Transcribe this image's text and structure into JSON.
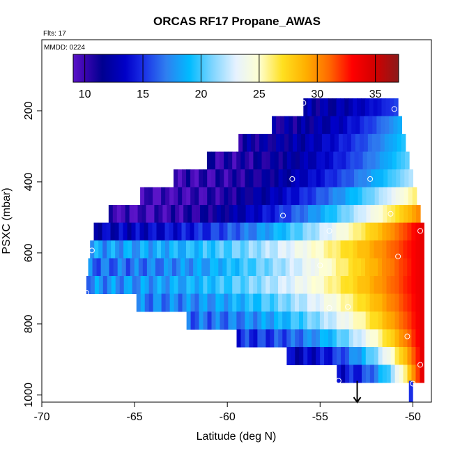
{
  "chart_data": {
    "type": "heatmap",
    "title": "ORCAS RF17 Propane_AWAS",
    "flights_label": "Flts: 17",
    "mmdd_label": "MMDD: 0224",
    "xlabel": "Latitude (deg N)",
    "ylabel": "PSXC (mbar)",
    "xlim": [
      -70,
      -49
    ],
    "ylim": [
      1020,
      0
    ],
    "x_ticks": [
      -70,
      -65,
      -60,
      -55,
      -50
    ],
    "x_tick_labels": [
      "-70",
      "-65",
      "-60",
      "-55",
      "-50"
    ],
    "y_ticks": [
      200,
      400,
      600,
      800,
      1000
    ],
    "y_tick_labels": [
      "200",
      "400",
      "600",
      "800",
      "1000"
    ],
    "colorbar": {
      "min": 9,
      "max": 37,
      "ticks": [
        10,
        15,
        20,
        25,
        30,
        35
      ],
      "tick_labels": [
        "10",
        "15",
        "20",
        "25",
        "30",
        "35"
      ],
      "stops": [
        {
          "v": 9,
          "c": "#5a14c8"
        },
        {
          "v": 10,
          "c": "#3a05b0"
        },
        {
          "v": 11.5,
          "c": "#000090"
        },
        {
          "v": 13.5,
          "c": "#0000c8"
        },
        {
          "v": 15,
          "c": "#1a2ee6"
        },
        {
          "v": 17,
          "c": "#2f7ff0"
        },
        {
          "v": 19,
          "c": "#00bbff"
        },
        {
          "v": 21,
          "c": "#7fd5ff"
        },
        {
          "v": 23,
          "c": "#e6f2ff"
        },
        {
          "v": 25,
          "c": "#ffffd0"
        },
        {
          "v": 27,
          "c": "#ffe020"
        },
        {
          "v": 29,
          "c": "#ffb000"
        },
        {
          "v": 31,
          "c": "#ff6a00"
        },
        {
          "v": 33,
          "c": "#ff0000"
        },
        {
          "v": 35,
          "c": "#d00000"
        },
        {
          "v": 37,
          "c": "#8b1a1a"
        }
      ]
    },
    "rows": [
      {
        "p": 190,
        "x0": -55.9,
        "x1": -50.8,
        "v0": 12.0,
        "v1": 15.5
      },
      {
        "p": 240,
        "x0": -57.6,
        "x1": -50.6,
        "v0": 11.5,
        "v1": 18.5
      },
      {
        "p": 290,
        "x0": -59.4,
        "x1": -50.4,
        "v0": 11.5,
        "v1": 19.5
      },
      {
        "p": 340,
        "x0": -61.1,
        "x1": -50.2,
        "v0": 10.5,
        "v1": 20.5
      },
      {
        "p": 390,
        "x0": -62.9,
        "x1": -50.0,
        "v0": 10.0,
        "v1": 22.0
      },
      {
        "p": 440,
        "x0": -64.7,
        "x1": -49.8,
        "v0": 9.5,
        "v1": 26.0
      },
      {
        "p": 490,
        "x0": -66.4,
        "x1": -49.6,
        "v0": 9.5,
        "v1": 30.0
      },
      {
        "p": 540,
        "x0": -67.2,
        "x1": -49.4,
        "v0": 13.0,
        "v1": 34.0
      },
      {
        "p": 590,
        "x0": -67.4,
        "x1": -49.4,
        "v0": 18.0,
        "v1": 34.0
      },
      {
        "p": 640,
        "x0": -67.5,
        "x1": -49.4,
        "v0": 16.5,
        "v1": 34.0
      },
      {
        "p": 690,
        "x0": -67.6,
        "x1": -49.4,
        "v0": 17.5,
        "v1": 34.0
      },
      {
        "p": 740,
        "x0": -64.9,
        "x1": -49.4,
        "v0": 17.0,
        "v1": 34.0
      },
      {
        "p": 790,
        "x0": -62.2,
        "x1": -49.4,
        "v0": 16.5,
        "v1": 34.0
      },
      {
        "p": 840,
        "x0": -59.5,
        "x1": -49.4,
        "v0": 15.0,
        "v1": 34.0
      },
      {
        "p": 890,
        "x0": -56.8,
        "x1": -49.4,
        "v0": 13.0,
        "v1": 34.0
      },
      {
        "p": 940,
        "x0": -54.1,
        "x1": -49.4,
        "v0": 14.0,
        "v1": 34.0
      }
    ],
    "sample_points": [
      {
        "x": -55.9,
        "y": 178
      },
      {
        "x": -51.0,
        "y": 195
      },
      {
        "x": -56.5,
        "y": 392
      },
      {
        "x": -52.3,
        "y": 392
      },
      {
        "x": -66.8,
        "y": 465
      },
      {
        "x": -57.0,
        "y": 495
      },
      {
        "x": -51.2,
        "y": 490
      },
      {
        "x": -54.5,
        "y": 538
      },
      {
        "x": -49.6,
        "y": 538
      },
      {
        "x": -67.3,
        "y": 593
      },
      {
        "x": -50.8,
        "y": 610
      },
      {
        "x": -55.0,
        "y": 635
      },
      {
        "x": -67.6,
        "y": 712
      },
      {
        "x": -54.5,
        "y": 755
      },
      {
        "x": -53.5,
        "y": 752
      },
      {
        "x": -50.3,
        "y": 835
      },
      {
        "x": -49.6,
        "y": 915
      },
      {
        "x": -54.0,
        "y": 960
      },
      {
        "x": -50.0,
        "y": 968
      }
    ],
    "markers": [
      {
        "type": "bar",
        "x": -50.1,
        "p0": 960,
        "p1": 1020,
        "color": "#1a2ee6"
      },
      {
        "type": "arrow",
        "x": -53.0,
        "p0": 960,
        "p1": 1020,
        "color": "#000000"
      }
    ]
  }
}
